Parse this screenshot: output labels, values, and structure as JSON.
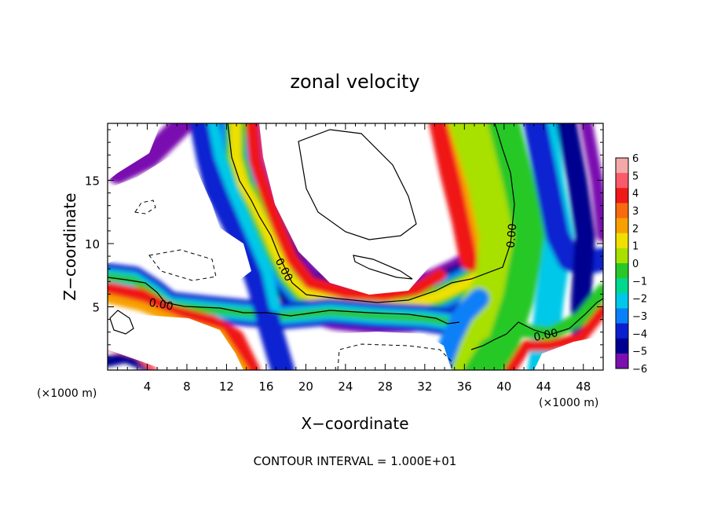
{
  "chart_data": {
    "type": "heatmap",
    "title": "zonal velocity",
    "xlabel": "X−coordinate",
    "ylabel": "Z−coordinate",
    "x_unit_left": "(×1000 m)",
    "x_unit_right": "(×1000 m)",
    "xlim": [
      0,
      50
    ],
    "ylim": [
      0,
      19.5
    ],
    "x_ticks": [
      4,
      8,
      12,
      16,
      20,
      24,
      28,
      32,
      36,
      40,
      44,
      48
    ],
    "x_tick_labels": [
      "4",
      "8",
      "12",
      "16",
      "20",
      "24",
      "28",
      "32",
      "36",
      "40",
      "44",
      "48"
    ],
    "y_ticks": [
      5,
      10,
      15
    ],
    "y_tick_labels": [
      "5",
      "10",
      "15"
    ],
    "colorbar": {
      "levels": [
        6,
        5,
        4,
        3,
        2,
        1,
        0,
        -1,
        -2,
        -3,
        -4,
        -5,
        -6
      ],
      "labels": [
        "6",
        "5",
        "4",
        "3",
        "2",
        "1",
        "0",
        "−1",
        "−2",
        "−3",
        "−4",
        "−5",
        "−6"
      ],
      "colors": [
        "#f4a8a8",
        "#fa5a6a",
        "#f01818",
        "#f86a10",
        "#f8a000",
        "#f0e000",
        "#a8e000",
        "#28c828",
        "#00d890",
        "#00c8e8",
        "#0a80f8",
        "#0a20d0",
        "#000090",
        "#7a10b0"
      ]
    },
    "contour_labels": [
      "0.00",
      "0.00",
      "0.00",
      "0.00"
    ],
    "footer": "CONTOUR INTERVAL = 1.000E+01"
  }
}
